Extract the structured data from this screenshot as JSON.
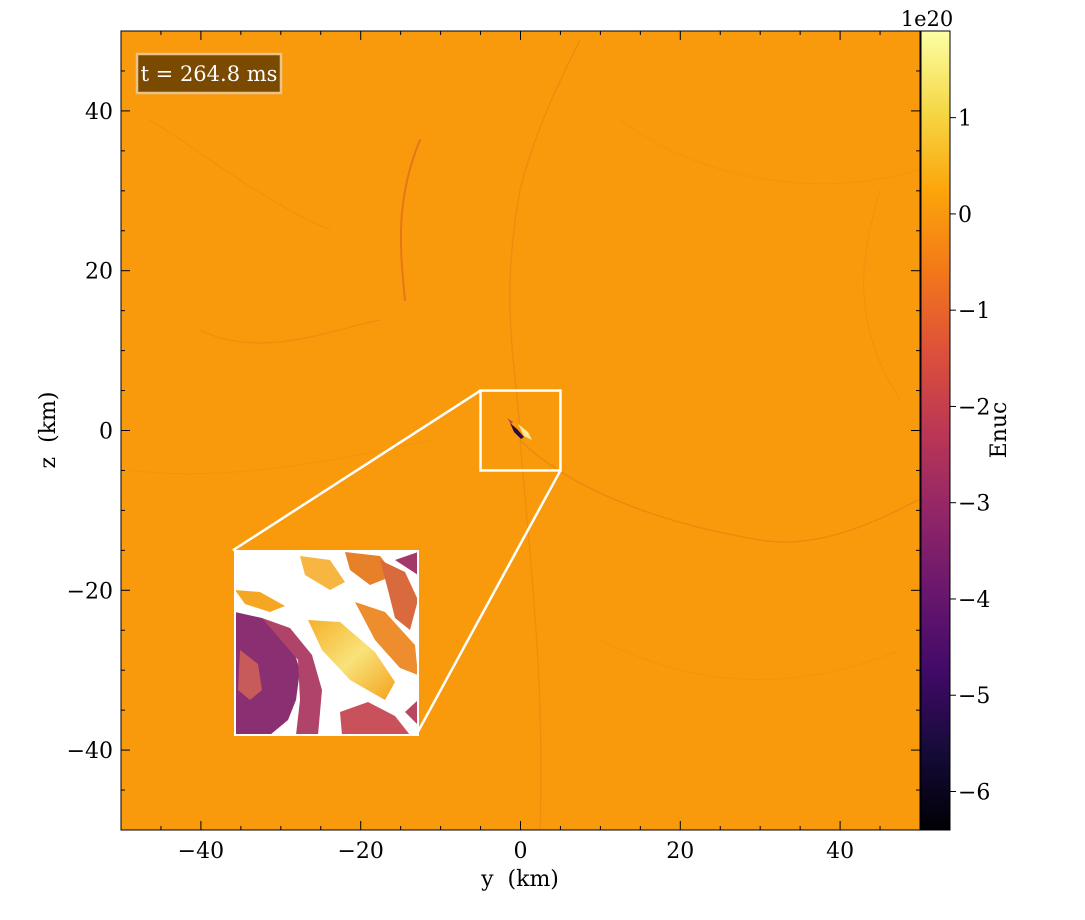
{
  "chart_data": {
    "type": "heatmap",
    "title": "",
    "xlabel": "y  (km)",
    "ylabel": "z  (km)",
    "xlim": [
      -50,
      50
    ],
    "ylim": [
      -50,
      50
    ],
    "xticks": [
      -40,
      -20,
      0,
      20,
      40
    ],
    "yticks": [
      -40,
      -20,
      0,
      20,
      40
    ],
    "xtick_labels": [
      "−40",
      "−20",
      "0",
      "20",
      "40"
    ],
    "ytick_labels": [
      "−40",
      "−20",
      "0",
      "20",
      "40"
    ],
    "annotation": "t = 264.8 ms",
    "colormap": "inferno",
    "colorbar": {
      "label": "Enuc",
      "offset_label": "1e20",
      "range": [
        -6.4,
        1.9
      ],
      "ticks": [
        1,
        0,
        -1,
        -2,
        -3,
        -4,
        -5,
        -6
      ],
      "tick_labels": [
        "1",
        "0",
        "−1",
        "−2",
        "−3",
        "−4",
        "−5",
        "−6"
      ]
    },
    "field": {
      "background_value": 0.1,
      "hotspot": {
        "y": 0,
        "z": 0,
        "min": -6.4,
        "max": 1.9
      }
    },
    "zoom_box": {
      "ylim": [
        -5,
        5
      ],
      "zlim": [
        -5,
        5
      ]
    },
    "inset": {
      "ylim": [
        -36,
        -13
      ],
      "zlim": [
        -38,
        -15
      ]
    }
  },
  "colors": {
    "background_field": "#f99a0c",
    "annotation_box": "#7a4a00",
    "annotation_edge": "#e8c48a",
    "zoom_lines": "#ffffff",
    "inferno": [
      "#000004",
      "#160b39",
      "#420a68",
      "#6a176e",
      "#932667",
      "#bc3754",
      "#dd513a",
      "#f37819",
      "#fca50a",
      "#f6d746",
      "#fcffa4"
    ]
  }
}
